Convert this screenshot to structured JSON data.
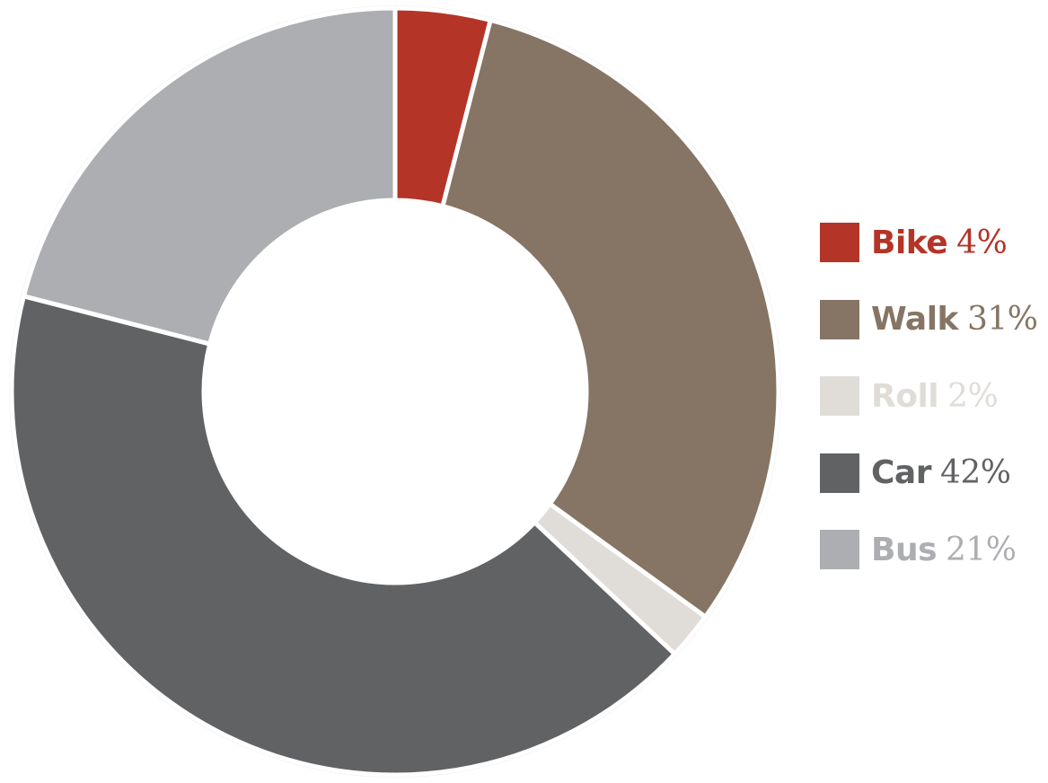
{
  "chart_data": {
    "type": "pie",
    "style": "donut",
    "title": "",
    "legend_position": "right",
    "start_angle_deg": 0,
    "direction": "clockwise",
    "series": [
      {
        "name": "Bike",
        "value": 4,
        "label": "4%",
        "color": "#b43427"
      },
      {
        "name": "Walk",
        "value": 31,
        "label": "31%",
        "color": "#867564"
      },
      {
        "name": "Roll",
        "value": 2,
        "label": "2%",
        "color": "#e0dcd8"
      },
      {
        "name": "Car",
        "value": 42,
        "label": "42%",
        "color": "#616264"
      },
      {
        "name": "Bus",
        "value": 21,
        "label": "21%",
        "color": "#adaeb1"
      }
    ]
  }
}
